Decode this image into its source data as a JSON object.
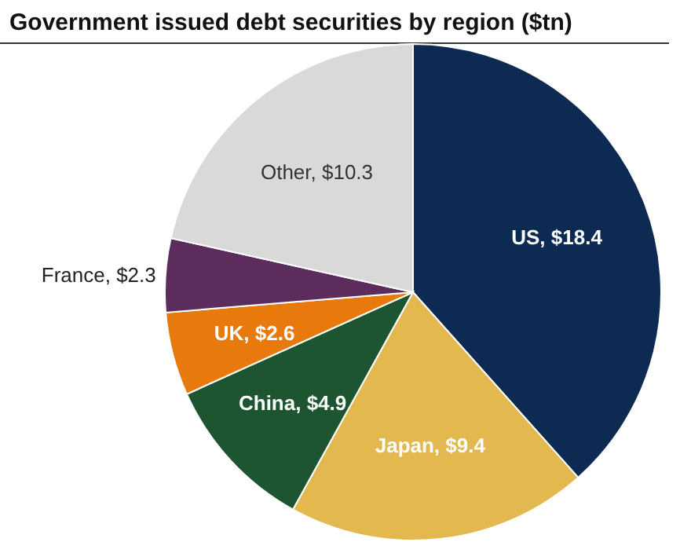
{
  "chart_data": {
    "type": "pie",
    "title": "Government issued debt securities by region ($tn)",
    "categories": [
      "US",
      "Japan",
      "China",
      "UK",
      "France",
      "Other"
    ],
    "values": [
      18.4,
      9.4,
      4.9,
      2.6,
      2.3,
      10.3
    ],
    "value_labels": [
      "$18.4",
      "$9.4",
      "$4.9",
      "$2.6",
      "$2.3",
      "$10.3"
    ],
    "colors": [
      "#0c2a52",
      "#e2b84f",
      "#1d5530",
      "#e8790d",
      "#5b2c5c",
      "#d9d9d9"
    ]
  }
}
